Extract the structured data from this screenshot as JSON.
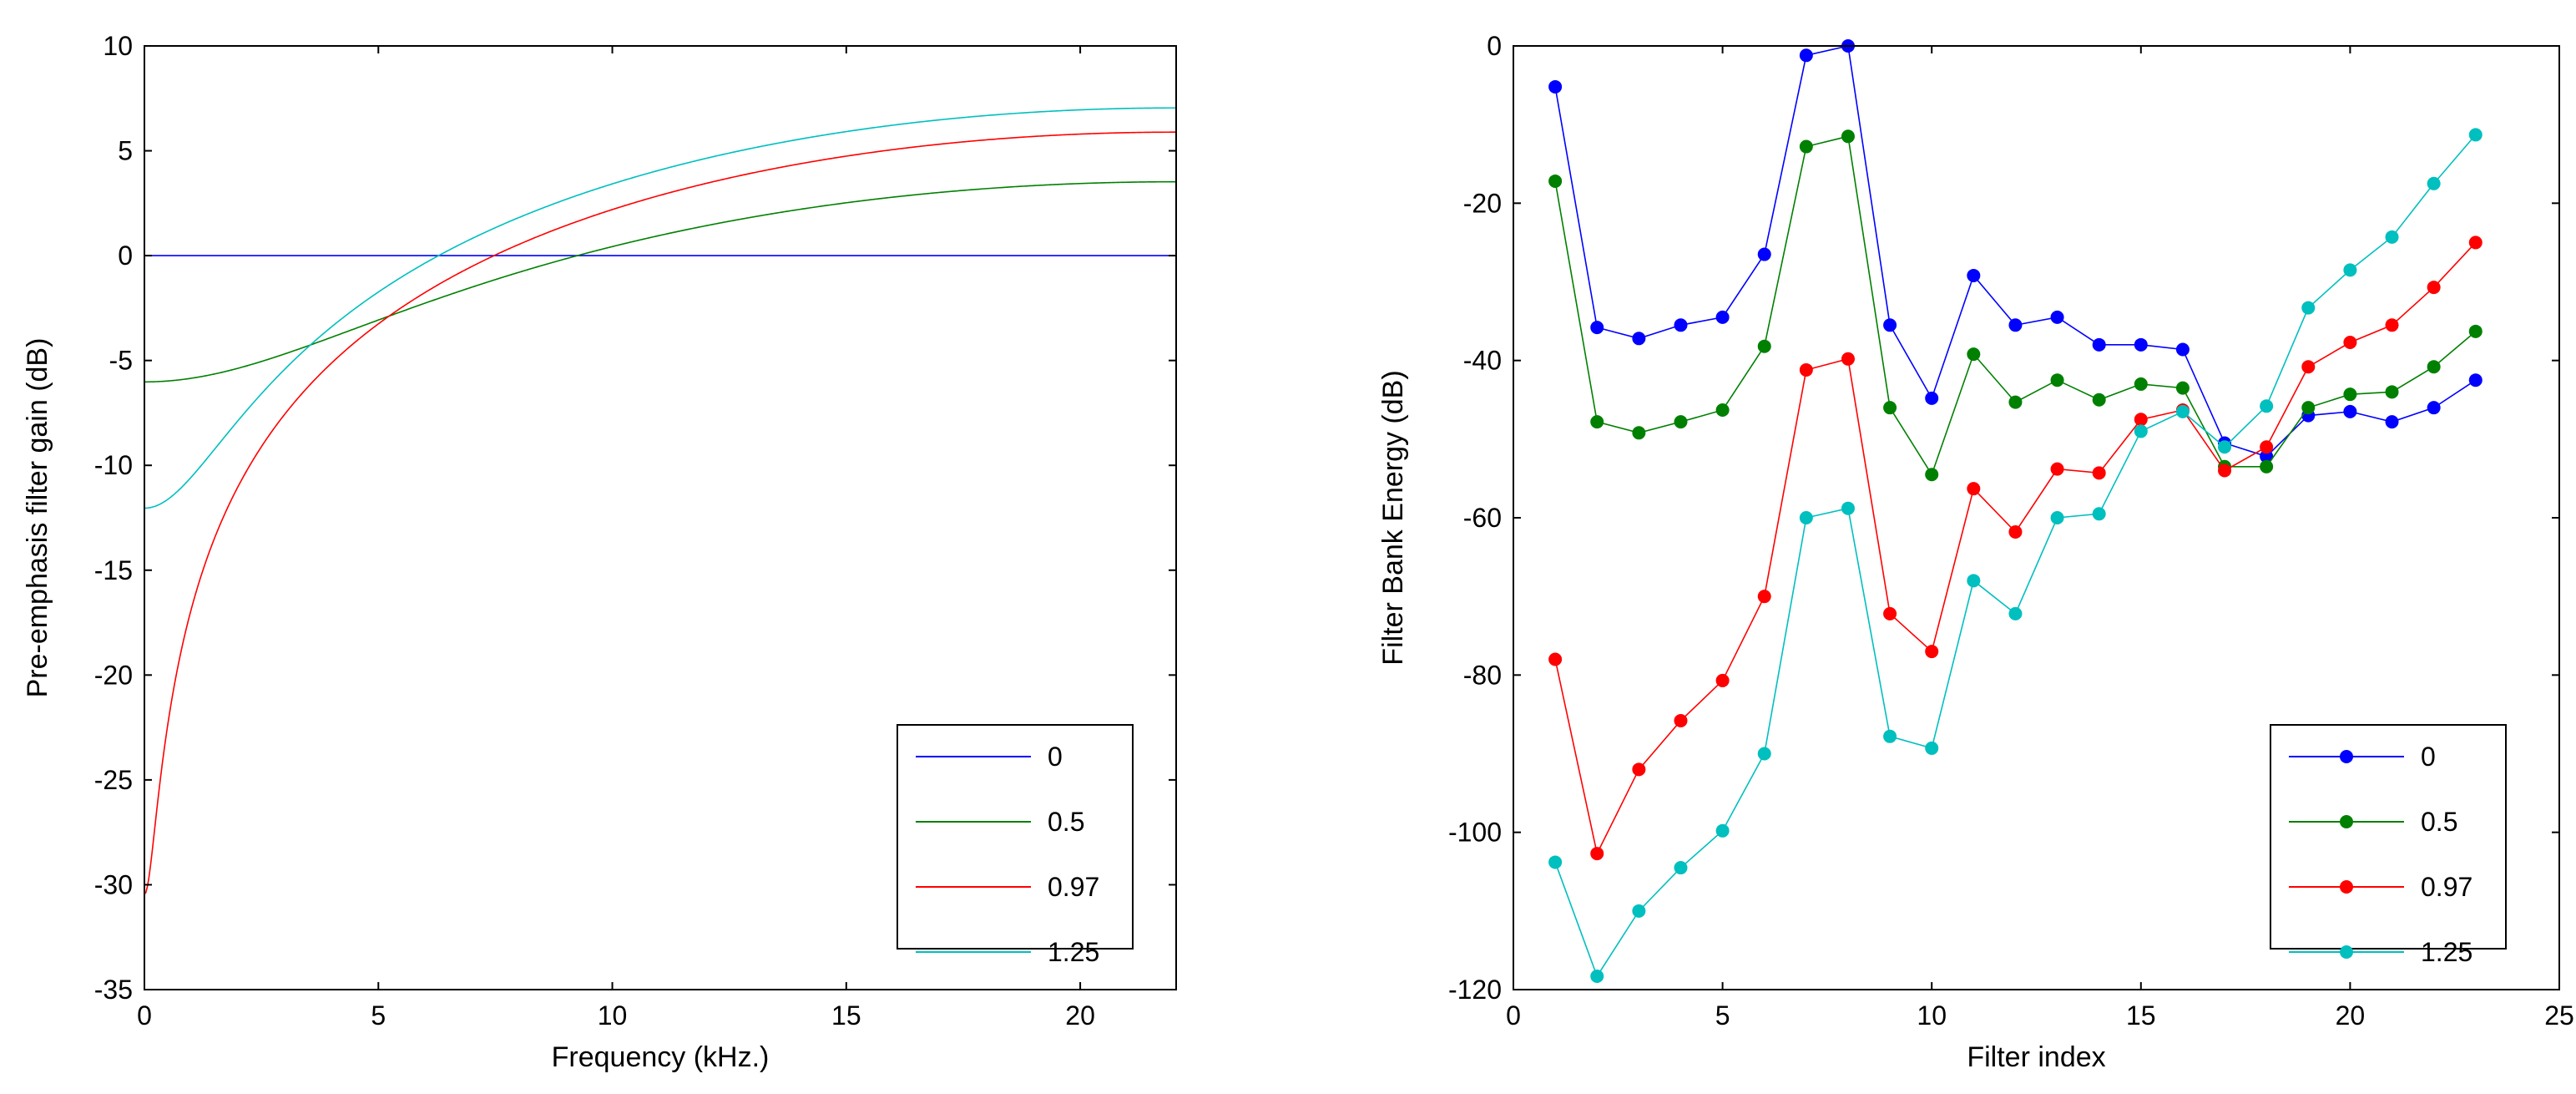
{
  "chart_data": [
    {
      "type": "line",
      "xlabel": "Frequency (kHz.)",
      "ylabel": "Pre-emphasis filter gain (dB)",
      "xlim": [
        0,
        22.05
      ],
      "ylim": [
        -35,
        10
      ],
      "xticks": [
        0,
        5,
        10,
        15,
        20
      ],
      "yticks": [
        -35,
        -30,
        -25,
        -20,
        -15,
        -10,
        -5,
        0,
        5,
        10
      ],
      "legend_position": "bottom-right",
      "fs_khz": 44.1,
      "series": [
        {
          "name": "0",
          "coefficient": 0,
          "color": "#0000ff"
        },
        {
          "name": "0.5",
          "coefficient": 0.5,
          "color": "#008000"
        },
        {
          "name": "0.97",
          "coefficient": 0.97,
          "color": "#ff0000"
        },
        {
          "name": "1.25",
          "coefficient": 1.25,
          "color": "#00bfbf"
        }
      ]
    },
    {
      "type": "line",
      "markers": true,
      "xlabel": "Filter index",
      "ylabel": "Filter Bank Energy (dB)",
      "xlim": [
        0,
        25
      ],
      "ylim": [
        -120,
        0
      ],
      "xticks": [
        0,
        5,
        10,
        15,
        20,
        25
      ],
      "yticks": [
        -120,
        -100,
        -80,
        -60,
        -40,
        -20,
        0
      ],
      "legend_position": "bottom-right",
      "x": [
        1,
        2,
        3,
        4,
        5,
        6,
        7,
        8,
        9,
        10,
        11,
        12,
        13,
        14,
        15,
        16,
        17,
        18,
        19,
        20,
        21,
        22,
        23
      ],
      "series": [
        {
          "name": "0",
          "color": "#0000ff",
          "values": [
            -5.2,
            -35.8,
            -37.2,
            -35.5,
            -34.5,
            -26.5,
            -1.2,
            0,
            -35.5,
            -44.8,
            -29.2,
            -35.5,
            -34.5,
            -38,
            -38,
            -38.6,
            -50.5,
            -52.2,
            -47,
            -46.5,
            -47.8,
            -46,
            -42.5
          ]
        },
        {
          "name": "0.5",
          "color": "#008000",
          "values": [
            -17.2,
            -47.8,
            -49.2,
            -47.8,
            -46.3,
            -38.2,
            -12.8,
            -11.5,
            -46,
            -54.5,
            -39.2,
            -45.3,
            -42.5,
            -45,
            -43,
            -43.5,
            -53.5,
            -53.5,
            -46,
            -44.3,
            -44,
            -40.8,
            -36.3
          ]
        },
        {
          "name": "0.97",
          "color": "#ff0000",
          "values": [
            -78,
            -102.7,
            -92,
            -85.8,
            -80.7,
            -70,
            -41.2,
            -39.8,
            -72.2,
            -77,
            -56.3,
            -61.8,
            -53.8,
            -54.3,
            -47.5,
            -46.3,
            -54,
            -51,
            -40.8,
            -37.7,
            -35.5,
            -30.7,
            -25
          ]
        },
        {
          "name": "1.25",
          "color": "#00bfbf",
          "values": [
            -103.8,
            -118.3,
            -110,
            -104.5,
            -99.8,
            -90,
            -60,
            -58.8,
            -87.8,
            -89.3,
            -68,
            -72.2,
            -60,
            -59.5,
            -49,
            -46.5,
            -51,
            -45.8,
            -33.3,
            -28.5,
            -24.3,
            -17.5,
            -11.3
          ]
        }
      ]
    }
  ]
}
